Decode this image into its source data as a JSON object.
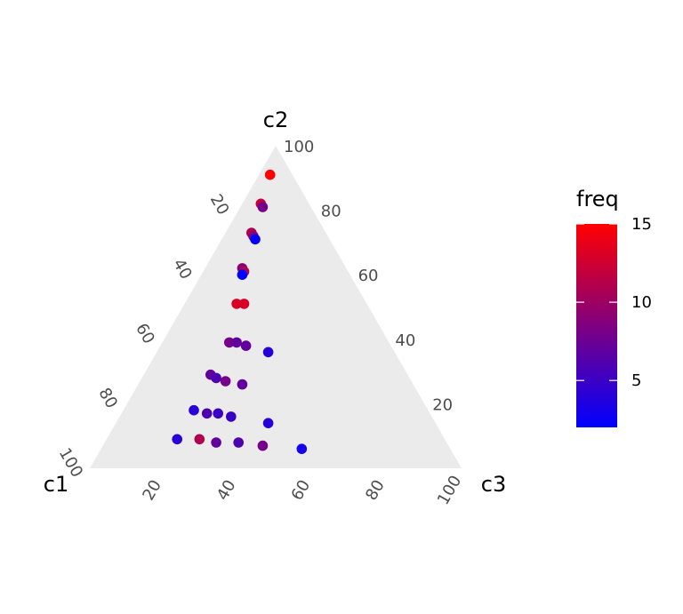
{
  "chart_data": {
    "type": "scatter",
    "subtype": "ternary",
    "axes": {
      "c1": {
        "label": "c1",
        "ticks": [
          "20",
          "40",
          "60",
          "80",
          "100"
        ]
      },
      "c2": {
        "label": "c2",
        "ticks": [
          "20",
          "40",
          "60",
          "80",
          "100"
        ]
      },
      "c3": {
        "label": "c3",
        "ticks": [
          "20",
          "40",
          "60",
          "80",
          "100"
        ]
      }
    },
    "background_color": "#ebebeb",
    "legend": {
      "title": "freq",
      "position": "right",
      "range": [
        2,
        15
      ],
      "ticks": [
        "5",
        "10",
        "15"
      ],
      "low_color": "#0000ff",
      "high_color": "#ff0000"
    },
    "points": [
      {
        "c1": 6,
        "c2": 91,
        "c3": 3,
        "freq": 15
      },
      {
        "c1": 13,
        "c2": 82,
        "c3": 5,
        "freq": 12
      },
      {
        "c1": 13,
        "c2": 81,
        "c3": 6,
        "freq": 8
      },
      {
        "c1": 20,
        "c2": 73,
        "c3": 7,
        "freq": 11
      },
      {
        "c1": 20,
        "c2": 72,
        "c3": 8,
        "freq": 9
      },
      {
        "c1": 20,
        "c2": 71,
        "c3": 9,
        "freq": 2
      },
      {
        "c1": 28,
        "c2": 62,
        "c3": 10,
        "freq": 9
      },
      {
        "c1": 28,
        "c2": 61,
        "c3": 11,
        "freq": 11
      },
      {
        "c1": 29,
        "c2": 60,
        "c3": 11,
        "freq": 2
      },
      {
        "c1": 35,
        "c2": 51,
        "c3": 14,
        "freq": 13
      },
      {
        "c1": 33,
        "c2": 51,
        "c3": 16,
        "freq": 13
      },
      {
        "c1": 43,
        "c2": 39,
        "c3": 18,
        "freq": 8
      },
      {
        "c1": 41,
        "c2": 39,
        "c3": 20,
        "freq": 7
      },
      {
        "c1": 39,
        "c2": 38,
        "c3": 23,
        "freq": 7
      },
      {
        "c1": 34,
        "c2": 36,
        "c3": 30,
        "freq": 4
      },
      {
        "c1": 53,
        "c2": 29,
        "c3": 18,
        "freq": 7
      },
      {
        "c1": 52,
        "c2": 28,
        "c3": 20,
        "freq": 6
      },
      {
        "c1": 50,
        "c2": 27,
        "c3": 23,
        "freq": 8
      },
      {
        "c1": 46,
        "c2": 26,
        "c3": 28,
        "freq": 7
      },
      {
        "c1": 63,
        "c2": 18,
        "c3": 19,
        "freq": 4
      },
      {
        "c1": 60,
        "c2": 17,
        "c3": 23,
        "freq": 6
      },
      {
        "c1": 57,
        "c2": 17,
        "c3": 26,
        "freq": 5
      },
      {
        "c1": 54,
        "c2": 16,
        "c3": 30,
        "freq": 5
      },
      {
        "c1": 45,
        "c2": 14,
        "c3": 41,
        "freq": 4
      },
      {
        "c1": 72,
        "c2": 9,
        "c3": 19,
        "freq": 4
      },
      {
        "c1": 66,
        "c2": 9,
        "c3": 25,
        "freq": 11
      },
      {
        "c1": 62,
        "c2": 8,
        "c3": 30,
        "freq": 7
      },
      {
        "c1": 56,
        "c2": 8,
        "c3": 36,
        "freq": 6
      },
      {
        "c1": 50,
        "c2": 7,
        "c3": 43,
        "freq": 8
      },
      {
        "c1": 40,
        "c2": 6,
        "c3": 54,
        "freq": 3
      }
    ]
  }
}
